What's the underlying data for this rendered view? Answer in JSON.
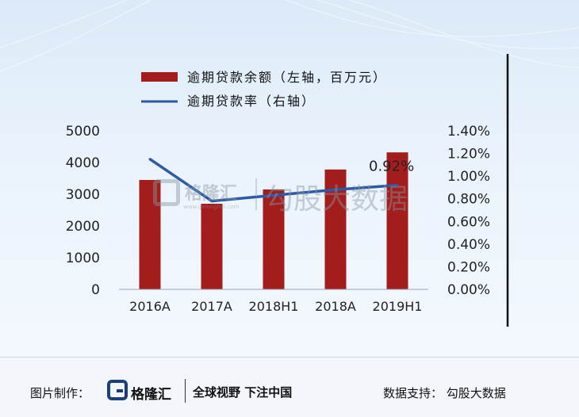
{
  "chart_data": {
    "type": "bar+line",
    "categories": [
      "2016A",
      "2017A",
      "2018H1",
      "2018A",
      "2019H1"
    ],
    "series": [
      {
        "name": "逾期贷款余额（左轴，百万元）",
        "type": "bar",
        "axis": "left",
        "color": "#a31d1d",
        "values": [
          3450,
          2700,
          3150,
          3780,
          4320
        ]
      },
      {
        "name": "逾期贷款率（右轴）",
        "type": "line",
        "axis": "right",
        "color": "#2b5aa6",
        "values": [
          1.15,
          0.78,
          0.83,
          0.88,
          0.92
        ]
      }
    ],
    "annotation": "0.92%",
    "left_axis": {
      "min": 0,
      "max": 5000,
      "ticks": [
        "0",
        "1000",
        "2000",
        "3000",
        "4000",
        "5000"
      ]
    },
    "right_axis": {
      "min": 0,
      "max": 1.4,
      "ticks": [
        "0.00%",
        "0.20%",
        "0.40%",
        "0.60%",
        "0.80%",
        "1.00%",
        "1.20%",
        "1.40%"
      ]
    },
    "grid": false,
    "legend_position": "top"
  },
  "watermark": {
    "brand": "格隆汇",
    "site": "www.gelonghui.com",
    "text": "勾股大数据"
  },
  "footer": {
    "credit_label": "图片制作：",
    "brand_name": "格隆汇",
    "brand_slogan": "全球视野 下注中国",
    "source": "数据支持：  勾股大数据"
  }
}
